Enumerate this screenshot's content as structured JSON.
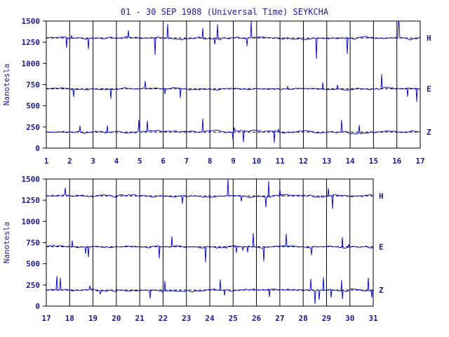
{
  "title": "01 - 30 SEP 1988 (Universal Time) SEYKCHA",
  "colors": {
    "ink": "#1a1a8c",
    "trace": "#1010c8",
    "axis": "#000000"
  },
  "chart_data": [
    {
      "type": "line",
      "ylabel": "Nanotesla",
      "ylim": [
        0,
        1500
      ],
      "yticks": [
        "0",
        "250",
        "500",
        "750",
        "1000",
        "1250",
        "1500"
      ],
      "xlim": [
        1,
        17
      ],
      "xticks": [
        "1",
        "2",
        "3",
        "4",
        "5",
        "6",
        "7",
        "8",
        "9",
        "10",
        "11",
        "12",
        "13",
        "14",
        "15",
        "16",
        "17"
      ],
      "series": [
        {
          "name": "H",
          "baseline": 1300
        },
        {
          "name": "E",
          "baseline": 700
        },
        {
          "name": "Z",
          "baseline": 190
        }
      ]
    },
    {
      "type": "line",
      "ylabel": "Nanotesla",
      "ylim": [
        0,
        1500
      ],
      "yticks": [
        "0",
        "250",
        "500",
        "750",
        "1000",
        "1250",
        "1500"
      ],
      "xlim": [
        17,
        31
      ],
      "xticks": [
        "17",
        "18",
        "19",
        "20",
        "21",
        "22",
        "23",
        "24",
        "25",
        "26",
        "27",
        "28",
        "29",
        "30",
        "31"
      ],
      "series": [
        {
          "name": "H",
          "baseline": 1300
        },
        {
          "name": "E",
          "baseline": 700
        },
        {
          "name": "Z",
          "baseline": 190
        }
      ]
    }
  ]
}
